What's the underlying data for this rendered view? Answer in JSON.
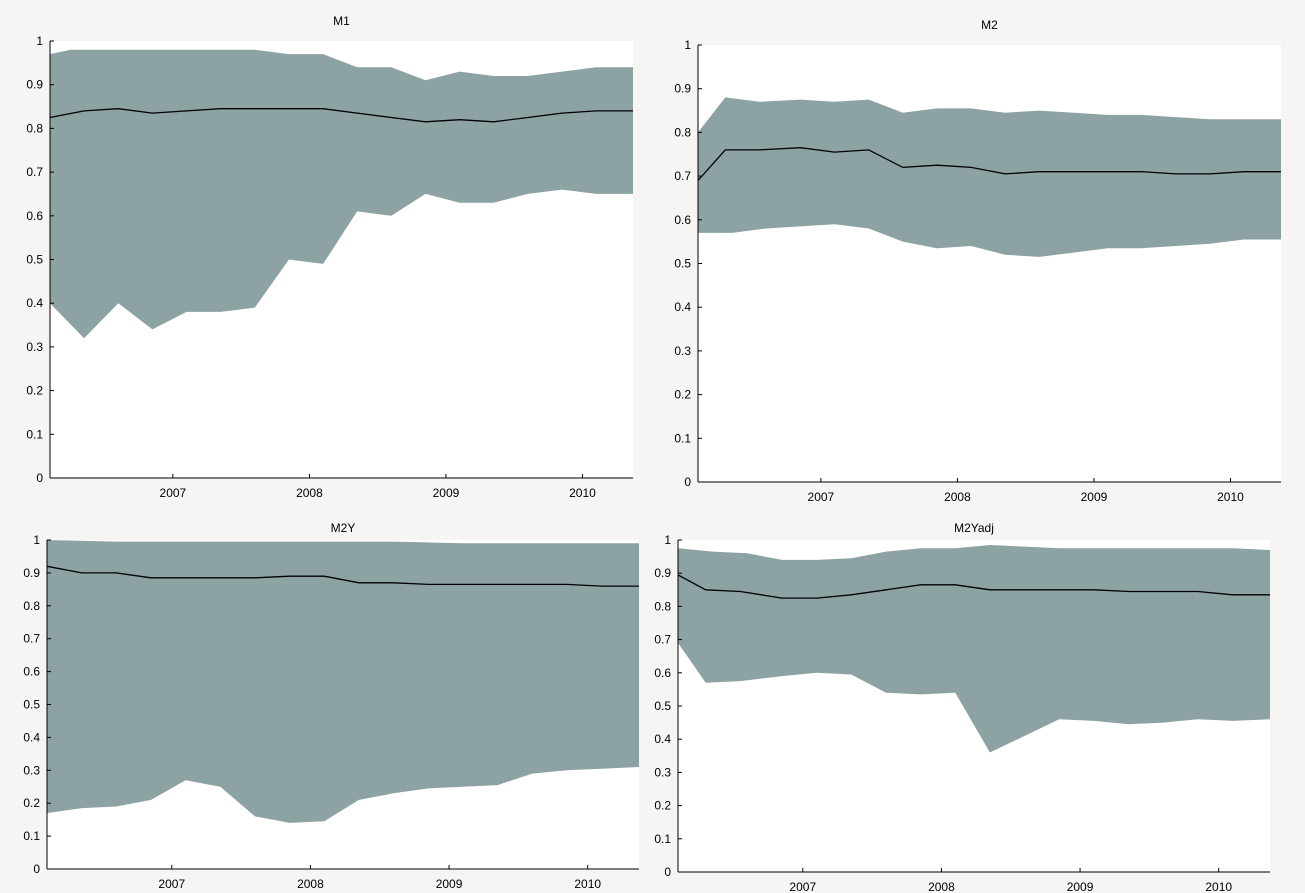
{
  "chart_data": [
    {
      "type": "area",
      "title": "M1",
      "ylim": [
        0,
        1
      ],
      "yticks": [
        "0",
        "0.1",
        "0.2",
        "0.3",
        "0.4",
        "0.5",
        "0.6",
        "0.7",
        "0.8",
        "0.9",
        "1"
      ],
      "xlim": [
        2006.1,
        2010.37
      ],
      "xticks": [
        "2007",
        "2008",
        "2009",
        "2010"
      ],
      "grid": false,
      "colors": {
        "band": "#8da2a2",
        "line": "#000000",
        "plot_bg": "#ffffff"
      },
      "series": [
        {
          "role": "band_upper",
          "x": [
            2006.1,
            2006.25,
            2006.45,
            2006.65,
            2006.85,
            2007.1,
            2007.35,
            2007.6,
            2007.85,
            2008.1,
            2008.35,
            2008.6,
            2008.85,
            2009.1,
            2009.35,
            2009.6,
            2009.85,
            2010.1,
            2010.37
          ],
          "values": [
            0.97,
            0.98,
            0.98,
            0.98,
            0.98,
            0.98,
            0.98,
            0.98,
            0.97,
            0.97,
            0.94,
            0.94,
            0.91,
            0.93,
            0.92,
            0.92,
            0.93,
            0.94,
            0.94
          ]
        },
        {
          "role": "band_lower",
          "x": [
            2006.1,
            2006.35,
            2006.6,
            2006.85,
            2007.1,
            2007.35,
            2007.6,
            2007.85,
            2008.1,
            2008.35,
            2008.6,
            2008.85,
            2009.1,
            2009.35,
            2009.6,
            2009.85,
            2010.1,
            2010.37
          ],
          "values": [
            0.4,
            0.32,
            0.4,
            0.34,
            0.38,
            0.38,
            0.39,
            0.5,
            0.49,
            0.61,
            0.6,
            0.65,
            0.63,
            0.63,
            0.65,
            0.66,
            0.65,
            0.65
          ]
        },
        {
          "role": "median",
          "x": [
            2006.1,
            2006.35,
            2006.6,
            2006.85,
            2007.1,
            2007.35,
            2007.6,
            2007.85,
            2008.1,
            2008.35,
            2008.6,
            2008.85,
            2009.1,
            2009.35,
            2009.6,
            2009.85,
            2010.1,
            2010.37
          ],
          "values": [
            0.825,
            0.84,
            0.845,
            0.835,
            0.84,
            0.845,
            0.845,
            0.845,
            0.845,
            0.835,
            0.825,
            0.815,
            0.82,
            0.815,
            0.825,
            0.835,
            0.84,
            0.84
          ]
        }
      ]
    },
    {
      "type": "area",
      "title": "M2",
      "ylim": [
        0,
        1
      ],
      "yticks": [
        "0",
        "0.1",
        "0.2",
        "0.3",
        "0.4",
        "0.5",
        "0.6",
        "0.7",
        "0.8",
        "0.9",
        "1"
      ],
      "xlim": [
        2006.1,
        2010.37
      ],
      "xticks": [
        "2007",
        "2008",
        "2009",
        "2010"
      ],
      "grid": false,
      "colors": {
        "band": "#8da2a2",
        "line": "#000000",
        "plot_bg": "#ffffff"
      },
      "series": [
        {
          "role": "band_upper",
          "x": [
            2006.1,
            2006.3,
            2006.55,
            2006.85,
            2007.1,
            2007.35,
            2007.6,
            2007.85,
            2008.1,
            2008.35,
            2008.6,
            2008.85,
            2009.1,
            2009.35,
            2009.6,
            2009.85,
            2010.1,
            2010.37
          ],
          "values": [
            0.8,
            0.88,
            0.87,
            0.875,
            0.87,
            0.875,
            0.845,
            0.855,
            0.855,
            0.845,
            0.85,
            0.845,
            0.84,
            0.84,
            0.835,
            0.83,
            0.83,
            0.83
          ]
        },
        {
          "role": "band_lower",
          "x": [
            2006.1,
            2006.35,
            2006.6,
            2006.85,
            2007.1,
            2007.35,
            2007.6,
            2007.85,
            2008.1,
            2008.35,
            2008.6,
            2008.85,
            2009.1,
            2009.35,
            2009.6,
            2009.85,
            2010.1,
            2010.37
          ],
          "values": [
            0.57,
            0.57,
            0.58,
            0.585,
            0.59,
            0.58,
            0.55,
            0.535,
            0.54,
            0.52,
            0.515,
            0.525,
            0.535,
            0.535,
            0.54,
            0.545,
            0.555,
            0.555
          ]
        },
        {
          "role": "median",
          "x": [
            2006.1,
            2006.3,
            2006.55,
            2006.85,
            2007.1,
            2007.35,
            2007.6,
            2007.85,
            2008.1,
            2008.35,
            2008.6,
            2008.85,
            2009.1,
            2009.35,
            2009.6,
            2009.85,
            2010.1,
            2010.37
          ],
          "values": [
            0.69,
            0.76,
            0.76,
            0.765,
            0.755,
            0.76,
            0.72,
            0.725,
            0.72,
            0.705,
            0.71,
            0.71,
            0.71,
            0.71,
            0.705,
            0.705,
            0.71,
            0.71
          ]
        }
      ]
    },
    {
      "type": "area",
      "title": "M2Y",
      "ylim": [
        0,
        1
      ],
      "yticks": [
        "0",
        "0.1",
        "0.2",
        "0.3",
        "0.4",
        "0.5",
        "0.6",
        "0.7",
        "0.8",
        "0.9",
        "1"
      ],
      "xlim": [
        2006.1,
        2010.37
      ],
      "xticks": [
        "2007",
        "2008",
        "2009",
        "2010"
      ],
      "grid": false,
      "colors": {
        "band": "#8da2a2",
        "line": "#000000",
        "plot_bg": "#ffffff"
      },
      "series": [
        {
          "role": "band_upper",
          "x": [
            2006.1,
            2006.6,
            2007.1,
            2007.6,
            2008.1,
            2008.6,
            2009.1,
            2009.6,
            2010.1,
            2010.37
          ],
          "values": [
            1.0,
            0.995,
            0.995,
            0.995,
            0.995,
            0.995,
            0.99,
            0.99,
            0.99,
            0.99
          ]
        },
        {
          "role": "band_lower",
          "x": [
            2006.1,
            2006.35,
            2006.6,
            2006.85,
            2007.1,
            2007.35,
            2007.6,
            2007.85,
            2008.1,
            2008.35,
            2008.6,
            2008.85,
            2009.1,
            2009.35,
            2009.6,
            2009.85,
            2010.1,
            2010.37
          ],
          "values": [
            0.17,
            0.185,
            0.19,
            0.21,
            0.27,
            0.25,
            0.16,
            0.14,
            0.145,
            0.21,
            0.23,
            0.245,
            0.25,
            0.255,
            0.29,
            0.3,
            0.305,
            0.31
          ]
        },
        {
          "role": "median",
          "x": [
            2006.1,
            2006.35,
            2006.6,
            2006.85,
            2007.1,
            2007.35,
            2007.6,
            2007.85,
            2008.1,
            2008.35,
            2008.6,
            2008.85,
            2009.1,
            2009.35,
            2009.6,
            2009.85,
            2010.1,
            2010.37
          ],
          "values": [
            0.92,
            0.9,
            0.9,
            0.885,
            0.885,
            0.885,
            0.885,
            0.89,
            0.89,
            0.87,
            0.87,
            0.865,
            0.865,
            0.865,
            0.865,
            0.865,
            0.86,
            0.86
          ]
        }
      ]
    },
    {
      "type": "area",
      "title": "M2Yadj",
      "ylim": [
        0,
        1
      ],
      "yticks": [
        "0",
        "0.1",
        "0.2",
        "0.3",
        "0.4",
        "0.5",
        "0.6",
        "0.7",
        "0.8",
        "0.9",
        "1"
      ],
      "xlim": [
        2006.1,
        2010.37
      ],
      "xticks": [
        "2007",
        "2008",
        "2009",
        "2010"
      ],
      "grid": false,
      "colors": {
        "band": "#8da2a2",
        "line": "#000000",
        "plot_bg": "#ffffff"
      },
      "series": [
        {
          "role": "band_upper",
          "x": [
            2006.1,
            2006.35,
            2006.6,
            2006.85,
            2007.1,
            2007.35,
            2007.6,
            2007.85,
            2008.1,
            2008.35,
            2008.6,
            2008.85,
            2009.1,
            2009.35,
            2009.6,
            2009.85,
            2010.1,
            2010.37
          ],
          "values": [
            0.975,
            0.965,
            0.96,
            0.94,
            0.94,
            0.945,
            0.965,
            0.975,
            0.975,
            0.985,
            0.98,
            0.975,
            0.975,
            0.975,
            0.975,
            0.975,
            0.975,
            0.97
          ]
        },
        {
          "role": "band_lower",
          "x": [
            2006.1,
            2006.3,
            2006.55,
            2006.85,
            2007.1,
            2007.35,
            2007.6,
            2007.85,
            2008.1,
            2008.35,
            2008.6,
            2008.85,
            2009.1,
            2009.35,
            2009.6,
            2009.85,
            2010.1,
            2010.37
          ],
          "values": [
            0.69,
            0.57,
            0.575,
            0.59,
            0.6,
            0.595,
            0.54,
            0.535,
            0.54,
            0.36,
            0.41,
            0.46,
            0.455,
            0.445,
            0.45,
            0.46,
            0.455,
            0.46
          ]
        },
        {
          "role": "median",
          "x": [
            2006.1,
            2006.3,
            2006.55,
            2006.85,
            2007.1,
            2007.35,
            2007.6,
            2007.85,
            2008.1,
            2008.35,
            2008.6,
            2008.85,
            2009.1,
            2009.35,
            2009.6,
            2009.85,
            2010.1,
            2010.37
          ],
          "values": [
            0.895,
            0.85,
            0.845,
            0.825,
            0.825,
            0.835,
            0.85,
            0.865,
            0.865,
            0.85,
            0.85,
            0.85,
            0.85,
            0.845,
            0.845,
            0.845,
            0.835,
            0.835
          ]
        }
      ]
    }
  ]
}
